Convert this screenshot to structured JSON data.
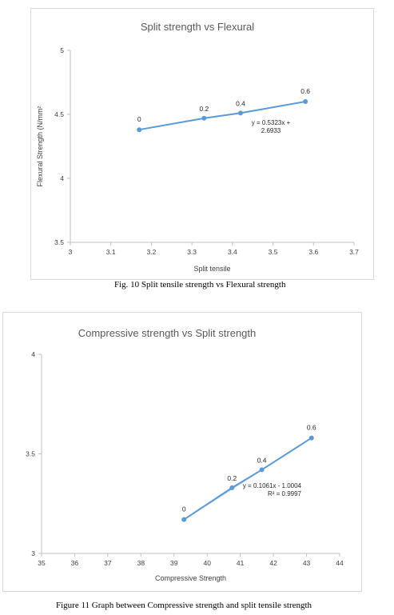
{
  "figures": [
    {
      "caption": "Fig. 10 Split tensile strength vs Flexural strength"
    },
    {
      "caption": "Figure 11 Graph between Compressive strength and split tensile strength"
    }
  ],
  "colors": {
    "series": "#5b9bd5",
    "axis": "#bfbfbf",
    "text": "#404040",
    "title": "#595959"
  },
  "chart_data": [
    {
      "type": "scatter",
      "title": "Split strength vs Flexural",
      "xlabel": "Split tensile",
      "ylabel": "Flexural Strength (N/mm²",
      "xlim": [
        3,
        3.7
      ],
      "ylim": [
        3.5,
        5
      ],
      "x_ticks": [
        "3",
        "3.1",
        "3.2",
        "3.3",
        "3.4",
        "3.5",
        "3.6",
        "3.7"
      ],
      "y_ticks": [
        "3.5",
        "4",
        "4.5",
        "5"
      ],
      "grid": false,
      "series": [
        {
          "x": [
            3.17,
            3.33,
            3.42,
            3.58
          ],
          "y": [
            4.38,
            4.47,
            4.51,
            4.6
          ],
          "point_labels": [
            "0",
            "0.2",
            "0.4",
            "0.6"
          ]
        }
      ],
      "trendline": {
        "slope": 0.5323,
        "intercept": 2.6933,
        "label_lines": [
          "y = 0.5323x +",
          "2.6933"
        ]
      }
    },
    {
      "type": "scatter",
      "title": "Compressive strength vs Split strength",
      "xlabel": "Compressive Strength",
      "ylabel": "",
      "xlim": [
        35,
        44
      ],
      "ylim": [
        3,
        4
      ],
      "x_ticks": [
        "35",
        "36",
        "37",
        "38",
        "39",
        "40",
        "41",
        "42",
        "43",
        "44"
      ],
      "y_ticks": [
        "3",
        "3.5",
        "4"
      ],
      "grid": false,
      "series": [
        {
          "x": [
            39.3,
            40.75,
            41.65,
            43.15
          ],
          "y": [
            3.17,
            3.33,
            3.42,
            3.58
          ],
          "point_labels": [
            "0",
            "0.2",
            "0.4",
            "0.6"
          ]
        }
      ],
      "trendline": {
        "slope": 0.1061,
        "intercept": -1.0004,
        "label_lines": [
          "y = 0.1061x - 1.0004",
          "R² = 0.9997"
        ]
      }
    }
  ]
}
